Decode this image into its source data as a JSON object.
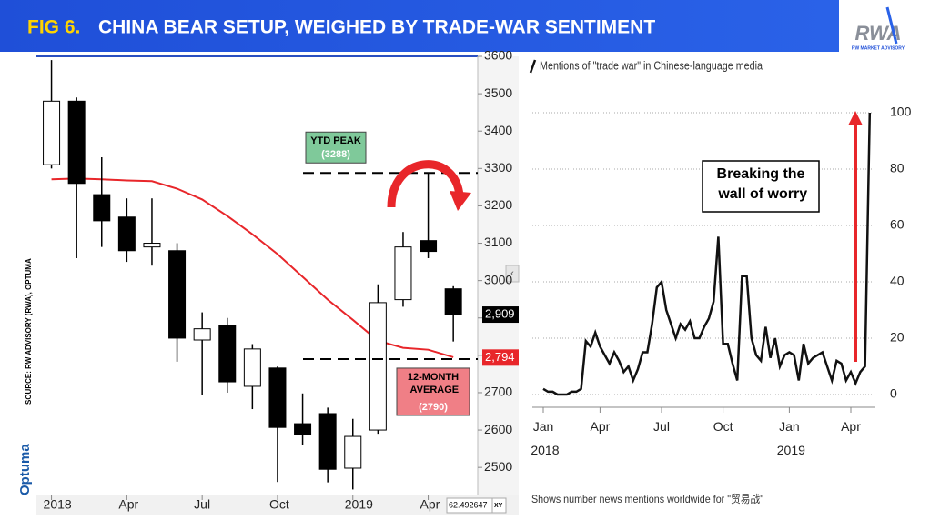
{
  "header": {
    "fig": "FIG 6.",
    "title": "CHINA BEAR SETUP, WEIGHED BY TRADE-WAR SENTIMENT",
    "logo": "RWA",
    "logo_sub": "RW MARKET ADVISORY"
  },
  "chart_data": [
    {
      "type": "candlestick",
      "categories": [
        "2018",
        null,
        null,
        "Apr",
        null,
        null,
        "Jul",
        null,
        null,
        "Oct",
        null,
        null,
        "2019",
        null,
        null,
        "Apr",
        null
      ],
      "open": [
        3310,
        3480,
        3230,
        3170,
        3090,
        3080,
        2841,
        2880,
        2717,
        2766,
        2617,
        2644,
        2498,
        2600,
        2949,
        3107,
        2978
      ],
      "high": [
        3590,
        3490,
        3330,
        3220,
        3220,
        3100,
        2915,
        2900,
        2830,
        2770,
        2698,
        2660,
        2630,
        2990,
        3130,
        3288,
        2985
      ],
      "low": [
        3300,
        3060,
        3090,
        3050,
        3040,
        2783,
        2695,
        2700,
        2656,
        2461,
        2559,
        2460,
        2441,
        2590,
        2930,
        3060,
        2837
      ],
      "close": [
        3480,
        3260,
        3160,
        3080,
        3100,
        2846,
        2871,
        2729,
        2817,
        2607,
        2588,
        2495,
        2583,
        2941,
        3090,
        3078,
        2910
      ],
      "up_color": "#ffffff",
      "down_color": "#000000",
      "moving_average": {
        "color": "#e8262a",
        "values": [
          3271,
          3273,
          3271,
          3268,
          3266,
          3246,
          3217,
          3173,
          3124,
          3071,
          3010,
          2949,
          2895,
          2839,
          2820,
          2815,
          2795
        ]
      },
      "ylim": [
        2425,
        3600
      ],
      "yticks": [
        2500,
        2600,
        2700,
        2800,
        2900,
        3000,
        3100,
        3200,
        3300,
        3400,
        3500,
        3600
      ],
      "annotations": [
        {
          "text": "YTD PEAK",
          "value": 3288,
          "value_label": "(3288)",
          "color": "#7fc99a"
        },
        {
          "text": "12-MONTH AVERAGE",
          "value": 2790,
          "value_label": "(2790)",
          "color": "#f07f86"
        }
      ],
      "price_labels": [
        {
          "value": 2909,
          "label": "2,909",
          "color": "#000000"
        },
        {
          "value": 2794,
          "label": "2,794",
          "color": "#e8262a"
        }
      ],
      "source": "SOURCE: RW ADVISORY (RWA), OPTUMA",
      "brand": "Optuma",
      "cursor_value": "62.492647",
      "cursor_mode": "XY"
    },
    {
      "type": "line",
      "categories": [
        "Jan 2018",
        null,
        null,
        null,
        null,
        null,
        null,
        null,
        null,
        null,
        null,
        null,
        "Apr",
        null,
        null,
        null,
        null,
        null,
        null,
        null,
        null,
        null,
        null,
        null,
        null,
        "Jul",
        null,
        null,
        null,
        null,
        null,
        null,
        null,
        null,
        null,
        null,
        null,
        null,
        "Oct",
        null,
        null,
        null,
        null,
        null,
        null,
        null,
        null,
        null,
        null,
        null,
        null,
        null,
        "Jan 2019",
        null,
        null,
        null,
        null,
        null,
        null,
        null,
        null,
        null,
        null,
        null,
        null,
        "Apr",
        null,
        null,
        null,
        null
      ],
      "series": [
        {
          "name": "Mentions of \"trade war\" in Chinese-language media",
          "color": "#111111",
          "values": [
            2,
            1,
            1,
            0,
            0,
            0,
            1,
            1,
            2,
            19,
            17,
            22,
            17,
            14,
            11,
            15,
            12,
            8,
            10,
            5,
            9,
            15,
            15,
            25,
            38,
            40,
            30,
            25,
            20,
            25,
            23,
            26,
            20,
            20,
            24,
            27,
            33,
            56,
            18,
            18,
            11,
            5,
            42,
            42,
            20,
            14,
            12,
            24,
            13,
            20,
            10,
            14,
            15,
            14,
            5,
            18,
            11,
            13,
            14,
            15,
            10,
            5,
            12,
            11,
            5,
            8,
            4,
            8,
            10,
            100
          ]
        }
      ],
      "ylim": [
        0,
        100
      ],
      "yticks": [
        0,
        20,
        40,
        60,
        80,
        100
      ],
      "grid": true,
      "annotation": "Breaking the wall of worry",
      "footnote": "Shows number news mentions worldwide for \"贸易战\""
    }
  ]
}
